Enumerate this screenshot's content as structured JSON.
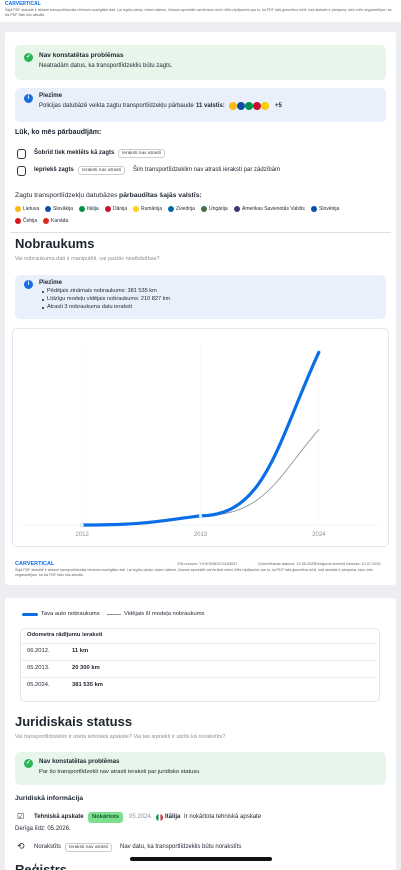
{
  "top": {
    "brand": "CARVERTICAL",
    "disclaimer": "Šajā PDF atskaitē ir iekļauti transportlīdzekļa vēstures svarīgākie dati. Lai iegūtu pieeju visiem datiem, lūdzam apmeklēt carVertical vietni. Mēs rūpējamies par to, lai PDF fails ģenerētos brīdī, kad atskaite ir pieejama, taču mēs negarantējam, ka šis PDF fails būs aktuāls."
  },
  "theft": {
    "alert_title": "Nav konstatētas problēmas",
    "alert_text": "Neatradām datus, ka transportlīdzeklis būtu zagts.",
    "note_title": "Piezīme",
    "note_text": "Policijas datubāzē veikta zagtu transportlīdzekļu pārbaude",
    "note_count": "11 valstīs:",
    "note_more": "+5",
    "checked_title": "Lūk, ko mēs pārbaudījām:",
    "checks": [
      {
        "label": "Šobrīd tiek meklēts kā zagts",
        "badge": "Ieraksti nav atrasti"
      },
      {
        "label": "Iepriekš zagts",
        "badge": "Ieraksti nav atrasti",
        "text": "Šim transportlīdzeklim nav atrasti ieraksti par zādzībām"
      }
    ],
    "countries_pre": "Zagtu transportlīdzekļu datubāzes",
    "countries_bold": "pārbaudītas šajās valstīs:",
    "countries": [
      "Lietuva",
      "Slovākija",
      "Itālija",
      "Dānija",
      "Rumānija",
      "Zviedrija",
      "Ungārija",
      "Amerikas Savienotās Valstis",
      "Slovēnija",
      "Čehija",
      "Kanāda"
    ]
  },
  "mileage": {
    "title": "Nobraukums",
    "subtitle": "Vai nobraukuma dati ir manipulēti, vai pastāv neatbilstības?",
    "note_title": "Piezīme",
    "notes": [
      "Pēdējais zināmais nobraukums: 381 535 km",
      "Līdzīgu modeļu vidējais nobraukums: 210 827 km",
      "Atrasti 3 nobraukuma datu ieraksti"
    ]
  },
  "chart_data": {
    "type": "line",
    "categories": [
      "2012",
      "2013",
      "2024"
    ],
    "series": [
      {
        "name": "Tava auto nobraukums",
        "color": "#0a6fe6",
        "values": [
          11,
          20300,
          381535
        ]
      },
      {
        "name": "Vidējais šī modeļa nobraukums",
        "color": "#8d9299",
        "values": [
          11,
          20300,
          210827
        ]
      }
    ],
    "ylim": [
      0,
      400000
    ]
  },
  "footer": {
    "brand": "CARVERTICAL",
    "vin": "VIN numurs: YV1KS960VC1163637",
    "generated": "Ģenerēšanas datums: 10.06.2025",
    "valid": "Derīguma termiņš beidzas: 10.07.2025",
    "disclaimer": "Šajā PDF atskaitē ir iekļauti transportlīdzekļa vēstures svarīgākie dati. Lai iegūtu pieeju visiem datiem, lūdzam apmeklēt carVertical vietni. Mēs rūpējamies par to, lai PDF fails ģenerētos brīdī, kad atskaite ir pieejama, taču mēs negarantējam, ka šis PDF fails būs aktuāls."
  },
  "odometer": {
    "title": "Odometra rādījumu ieraksti",
    "rows": [
      [
        "06.2012.",
        "11 km"
      ],
      [
        "05.2013.",
        "20 300 km"
      ],
      [
        "05.2024.",
        "381 535 km"
      ]
    ]
  },
  "legal": {
    "title": "Juridiskais statuss",
    "subtitle": "Vai transportlīdzeklim ir izieta tehniskā apskate? Vai tas iepriekš ir atzīts kā norakstīts?",
    "alert_title": "Nav konstatētas problēmas",
    "alert_text": "Par šo transportlīdzekli nav atrasti ieraksti par juridisko statusu",
    "info_title": "Juridiskā informācija",
    "inspection": {
      "label": "Tehniskā apskate",
      "badge": "Nokārtots",
      "date": "05.2024.",
      "country": "Itālija",
      "text": "Ir nokārtota tehniskā apskate",
      "valid": "Derīga līdz: 05.2026."
    },
    "writeoff": {
      "label": "Norakstīts",
      "badge": "Ieraksti nav atrasti",
      "text": "Nav datu, ka transportlīdzeklis būtu norakstīts"
    },
    "next": "Reģistrs"
  }
}
